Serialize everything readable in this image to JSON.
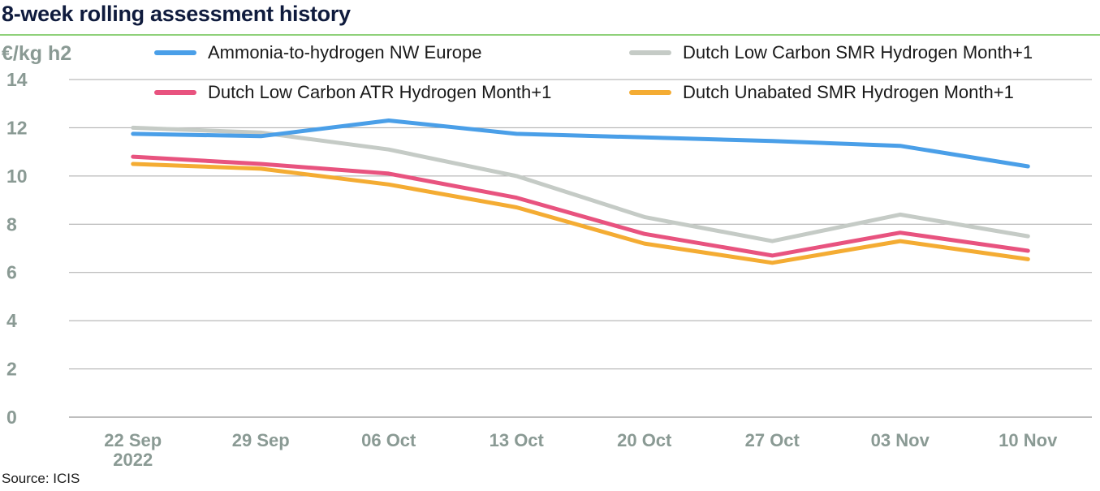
{
  "title": "8-week rolling assessment history",
  "source": "Source: ICIS",
  "chart_data": {
    "type": "line",
    "title": "8-week rolling assessment history",
    "ylabel": "€/kg h2",
    "xlabel": "",
    "ylim": [
      0,
      14
    ],
    "yticks": [
      0,
      2,
      4,
      6,
      8,
      10,
      12,
      14
    ],
    "grid": true,
    "legend_position": "top",
    "categories": [
      "22 Sep",
      "29 Sep",
      "06 Oct",
      "13 Oct",
      "20 Oct",
      "27 Oct",
      "03 Nov",
      "10 Nov"
    ],
    "first_category_year": "2022",
    "series": [
      {
        "name": "Ammonia-to-hydrogen NW Europe",
        "color": "#4a9fe8",
        "values": [
          11.75,
          11.65,
          12.3,
          11.75,
          11.6,
          11.45,
          11.25,
          10.4
        ]
      },
      {
        "name": "Dutch Low Carbon SMR Hydrogen Month+1",
        "color": "#c5cbc6",
        "values": [
          12.0,
          11.8,
          11.1,
          10.0,
          8.3,
          7.3,
          8.4,
          7.5
        ]
      },
      {
        "name": "Dutch Low Carbon ATR Hydrogen Month+1",
        "color": "#e8537f",
        "values": [
          10.8,
          10.5,
          10.1,
          9.1,
          7.6,
          6.7,
          7.65,
          6.9
        ]
      },
      {
        "name": "Dutch Unabated SMR Hydrogen Month+1",
        "color": "#f4ac33",
        "values": [
          10.5,
          10.3,
          9.65,
          8.7,
          7.2,
          6.4,
          7.3,
          6.55
        ]
      }
    ]
  }
}
